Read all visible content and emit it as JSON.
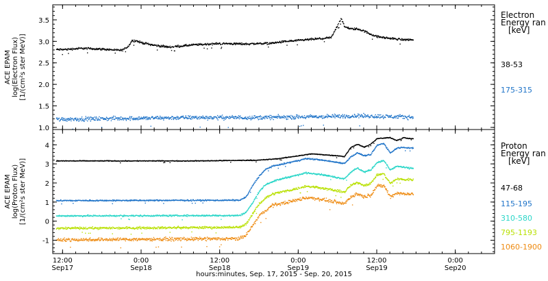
{
  "chart_data": [
    {
      "type": "scatter",
      "panel": "electron",
      "ylabel_lines": [
        "ACE EPAM",
        "log(Electron Flux)",
        "[1/(cm²s ster MeV)]"
      ],
      "ylim": [
        0.95,
        3.85
      ],
      "yticks": [
        1.0,
        1.5,
        2.0,
        2.5,
        3.0,
        3.5
      ],
      "ytick_labels": [
        "1.0",
        "1.5",
        "2.0",
        "2.5",
        "3.0",
        "3.5"
      ],
      "legend_title_lines": [
        "Electron",
        "Energy ran",
        "[keV]"
      ],
      "series": [
        {
          "name": "38-53",
          "color": "#000000",
          "profile": [
            [
              0,
              2.82
            ],
            [
              3,
              2.85
            ],
            [
              6,
              2.83
            ],
            [
              9,
              2.8
            ],
            [
              10,
              2.9
            ],
            [
              10.5,
              3.02
            ],
            [
              11,
              3.03
            ],
            [
              12,
              2.98
            ],
            [
              14,
              2.92
            ],
            [
              16,
              2.88
            ],
            [
              18,
              2.9
            ],
            [
              20,
              2.93
            ],
            [
              24,
              2.96
            ],
            [
              28,
              2.95
            ],
            [
              32,
              2.97
            ],
            [
              34,
              3.01
            ],
            [
              36,
              3.03
            ],
            [
              38,
              3.06
            ],
            [
              40,
              3.08
            ],
            [
              41,
              3.1
            ],
            [
              42.5,
              3.55
            ],
            [
              43,
              3.35
            ],
            [
              44,
              3.3
            ],
            [
              45,
              3.3
            ],
            [
              46,
              3.25
            ],
            [
              47,
              3.18
            ],
            [
              48,
              3.12
            ],
            [
              50,
              3.08
            ],
            [
              52,
              3.05
            ],
            [
              53,
              3.05
            ]
          ],
          "noise": 0.035
        },
        {
          "name": "175-315",
          "color": "#1e73c8",
          "profile": [
            [
              0,
              1.2
            ],
            [
              10,
              1.22
            ],
            [
              20,
              1.24
            ],
            [
              30,
              1.24
            ],
            [
              40,
              1.26
            ],
            [
              45,
              1.28
            ],
            [
              53,
              1.25
            ]
          ],
          "noise": 0.07
        }
      ]
    },
    {
      "type": "scatter",
      "panel": "proton",
      "ylabel_lines": [
        "ACE EPAM",
        "log(Proton Flux)",
        "[1/(cm²s ster MeV)]"
      ],
      "ylim": [
        -1.7,
        4.8
      ],
      "yticks": [
        -1,
        0,
        1,
        2,
        3,
        4
      ],
      "ytick_labels": [
        "-1",
        "0",
        "1",
        "2",
        "3",
        "4"
      ],
      "legend_title_lines": [
        "Proton",
        "Energy ran",
        "[keV]"
      ],
      "series": [
        {
          "name": "47-68",
          "color": "#000000",
          "profile": [
            [
              0,
              3.18
            ],
            [
              20,
              3.18
            ],
            [
              30,
              3.22
            ],
            [
              33,
              3.3
            ],
            [
              36,
              3.45
            ],
            [
              38,
              3.55
            ],
            [
              40,
              3.5
            ],
            [
              42,
              3.45
            ],
            [
              43,
              3.4
            ],
            [
              44,
              3.9
            ],
            [
              45,
              4.05
            ],
            [
              46,
              3.9
            ],
            [
              47,
              4.05
            ],
            [
              48,
              4.35
            ],
            [
              50,
              4.4
            ],
            [
              51,
              4.25
            ],
            [
              52,
              4.4
            ],
            [
              53,
              4.35
            ]
          ],
          "noise": 0.03
        },
        {
          "name": "115-195",
          "color": "#1e73c8",
          "profile": [
            [
              0,
              1.1
            ],
            [
              27,
              1.12
            ],
            [
              28,
              1.3
            ],
            [
              29,
              1.9
            ],
            [
              30,
              2.4
            ],
            [
              31,
              2.75
            ],
            [
              32,
              2.9
            ],
            [
              34,
              3.05
            ],
            [
              36,
              3.2
            ],
            [
              37,
              3.3
            ],
            [
              39,
              3.25
            ],
            [
              42,
              3.1
            ],
            [
              43,
              3.05
            ],
            [
              44,
              3.4
            ],
            [
              45,
              3.6
            ],
            [
              46,
              3.45
            ],
            [
              47,
              3.5
            ],
            [
              48,
              4.0
            ],
            [
              49,
              4.1
            ],
            [
              50,
              3.6
            ],
            [
              51,
              3.85
            ],
            [
              52,
              3.9
            ],
            [
              53,
              3.85
            ]
          ],
          "noise": 0.05
        },
        {
          "name": "310-580",
          "color": "#2ad6c8",
          "profile": [
            [
              0,
              0.3
            ],
            [
              27,
              0.32
            ],
            [
              28,
              0.5
            ],
            [
              29,
              1.0
            ],
            [
              30,
              1.6
            ],
            [
              31,
              1.95
            ],
            [
              32,
              2.1
            ],
            [
              34,
              2.3
            ],
            [
              36,
              2.45
            ],
            [
              37,
              2.55
            ],
            [
              39,
              2.5
            ],
            [
              42,
              2.3
            ],
            [
              43,
              2.25
            ],
            [
              44,
              2.6
            ],
            [
              45,
              2.8
            ],
            [
              46,
              2.6
            ],
            [
              47,
              2.7
            ],
            [
              48,
              3.1
            ],
            [
              49,
              3.2
            ],
            [
              50,
              2.7
            ],
            [
              51,
              2.9
            ],
            [
              52,
              2.85
            ],
            [
              53,
              2.8
            ]
          ],
          "noise": 0.06
        },
        {
          "name": "795-1193",
          "color": "#b8e000",
          "profile": [
            [
              0,
              -0.35
            ],
            [
              27,
              -0.3
            ],
            [
              28,
              -0.1
            ],
            [
              29,
              0.4
            ],
            [
              30,
              0.95
            ],
            [
              31,
              1.25
            ],
            [
              32,
              1.45
            ],
            [
              34,
              1.6
            ],
            [
              36,
              1.75
            ],
            [
              37,
              1.85
            ],
            [
              39,
              1.8
            ],
            [
              42,
              1.6
            ],
            [
              43,
              1.55
            ],
            [
              44,
              1.9
            ],
            [
              45,
              2.05
            ],
            [
              46,
              1.9
            ],
            [
              47,
              2.0
            ],
            [
              48,
              2.45
            ],
            [
              49,
              2.5
            ],
            [
              50,
              2.0
            ],
            [
              51,
              2.25
            ],
            [
              52,
              2.2
            ],
            [
              53,
              2.2
            ]
          ],
          "noise": 0.09
        },
        {
          "name": "1060-1900",
          "color": "#ee8a10",
          "profile": [
            [
              0,
              -0.95
            ],
            [
              27,
              -0.9
            ],
            [
              28,
              -0.7
            ],
            [
              29,
              -0.2
            ],
            [
              30,
              0.3
            ],
            [
              31,
              0.6
            ],
            [
              32,
              0.85
            ],
            [
              34,
              1.0
            ],
            [
              36,
              1.15
            ],
            [
              37,
              1.25
            ],
            [
              39,
              1.2
            ],
            [
              42,
              1.0
            ],
            [
              43,
              0.95
            ],
            [
              44,
              1.3
            ],
            [
              45,
              1.45
            ],
            [
              46,
              1.3
            ],
            [
              47,
              1.4
            ],
            [
              48,
              1.85
            ],
            [
              49,
              1.9
            ],
            [
              50,
              1.3
            ],
            [
              51,
              1.5
            ],
            [
              52,
              1.45
            ],
            [
              53,
              1.45
            ]
          ],
          "noise": 0.13
        }
      ]
    }
  ],
  "time_axis": {
    "range_hours": [
      -1.5,
      66
    ],
    "ticks": [
      {
        "t": 0,
        "label": "12:00",
        "sub": "Sep17"
      },
      {
        "t": 12,
        "label": "0:00",
        "sub": "Sep18"
      },
      {
        "t": 24,
        "label": "12:00",
        "sub": "Sep18"
      },
      {
        "t": 36,
        "label": "0:00",
        "sub": "Sep19"
      },
      {
        "t": 48,
        "label": "12:00",
        "sub": "Sep19"
      },
      {
        "t": 60,
        "label": "0:00",
        "sub": "Sep20"
      }
    ],
    "xlabel": "hours:minutes, Sep. 17, 2015 - Sep. 20, 2015"
  }
}
